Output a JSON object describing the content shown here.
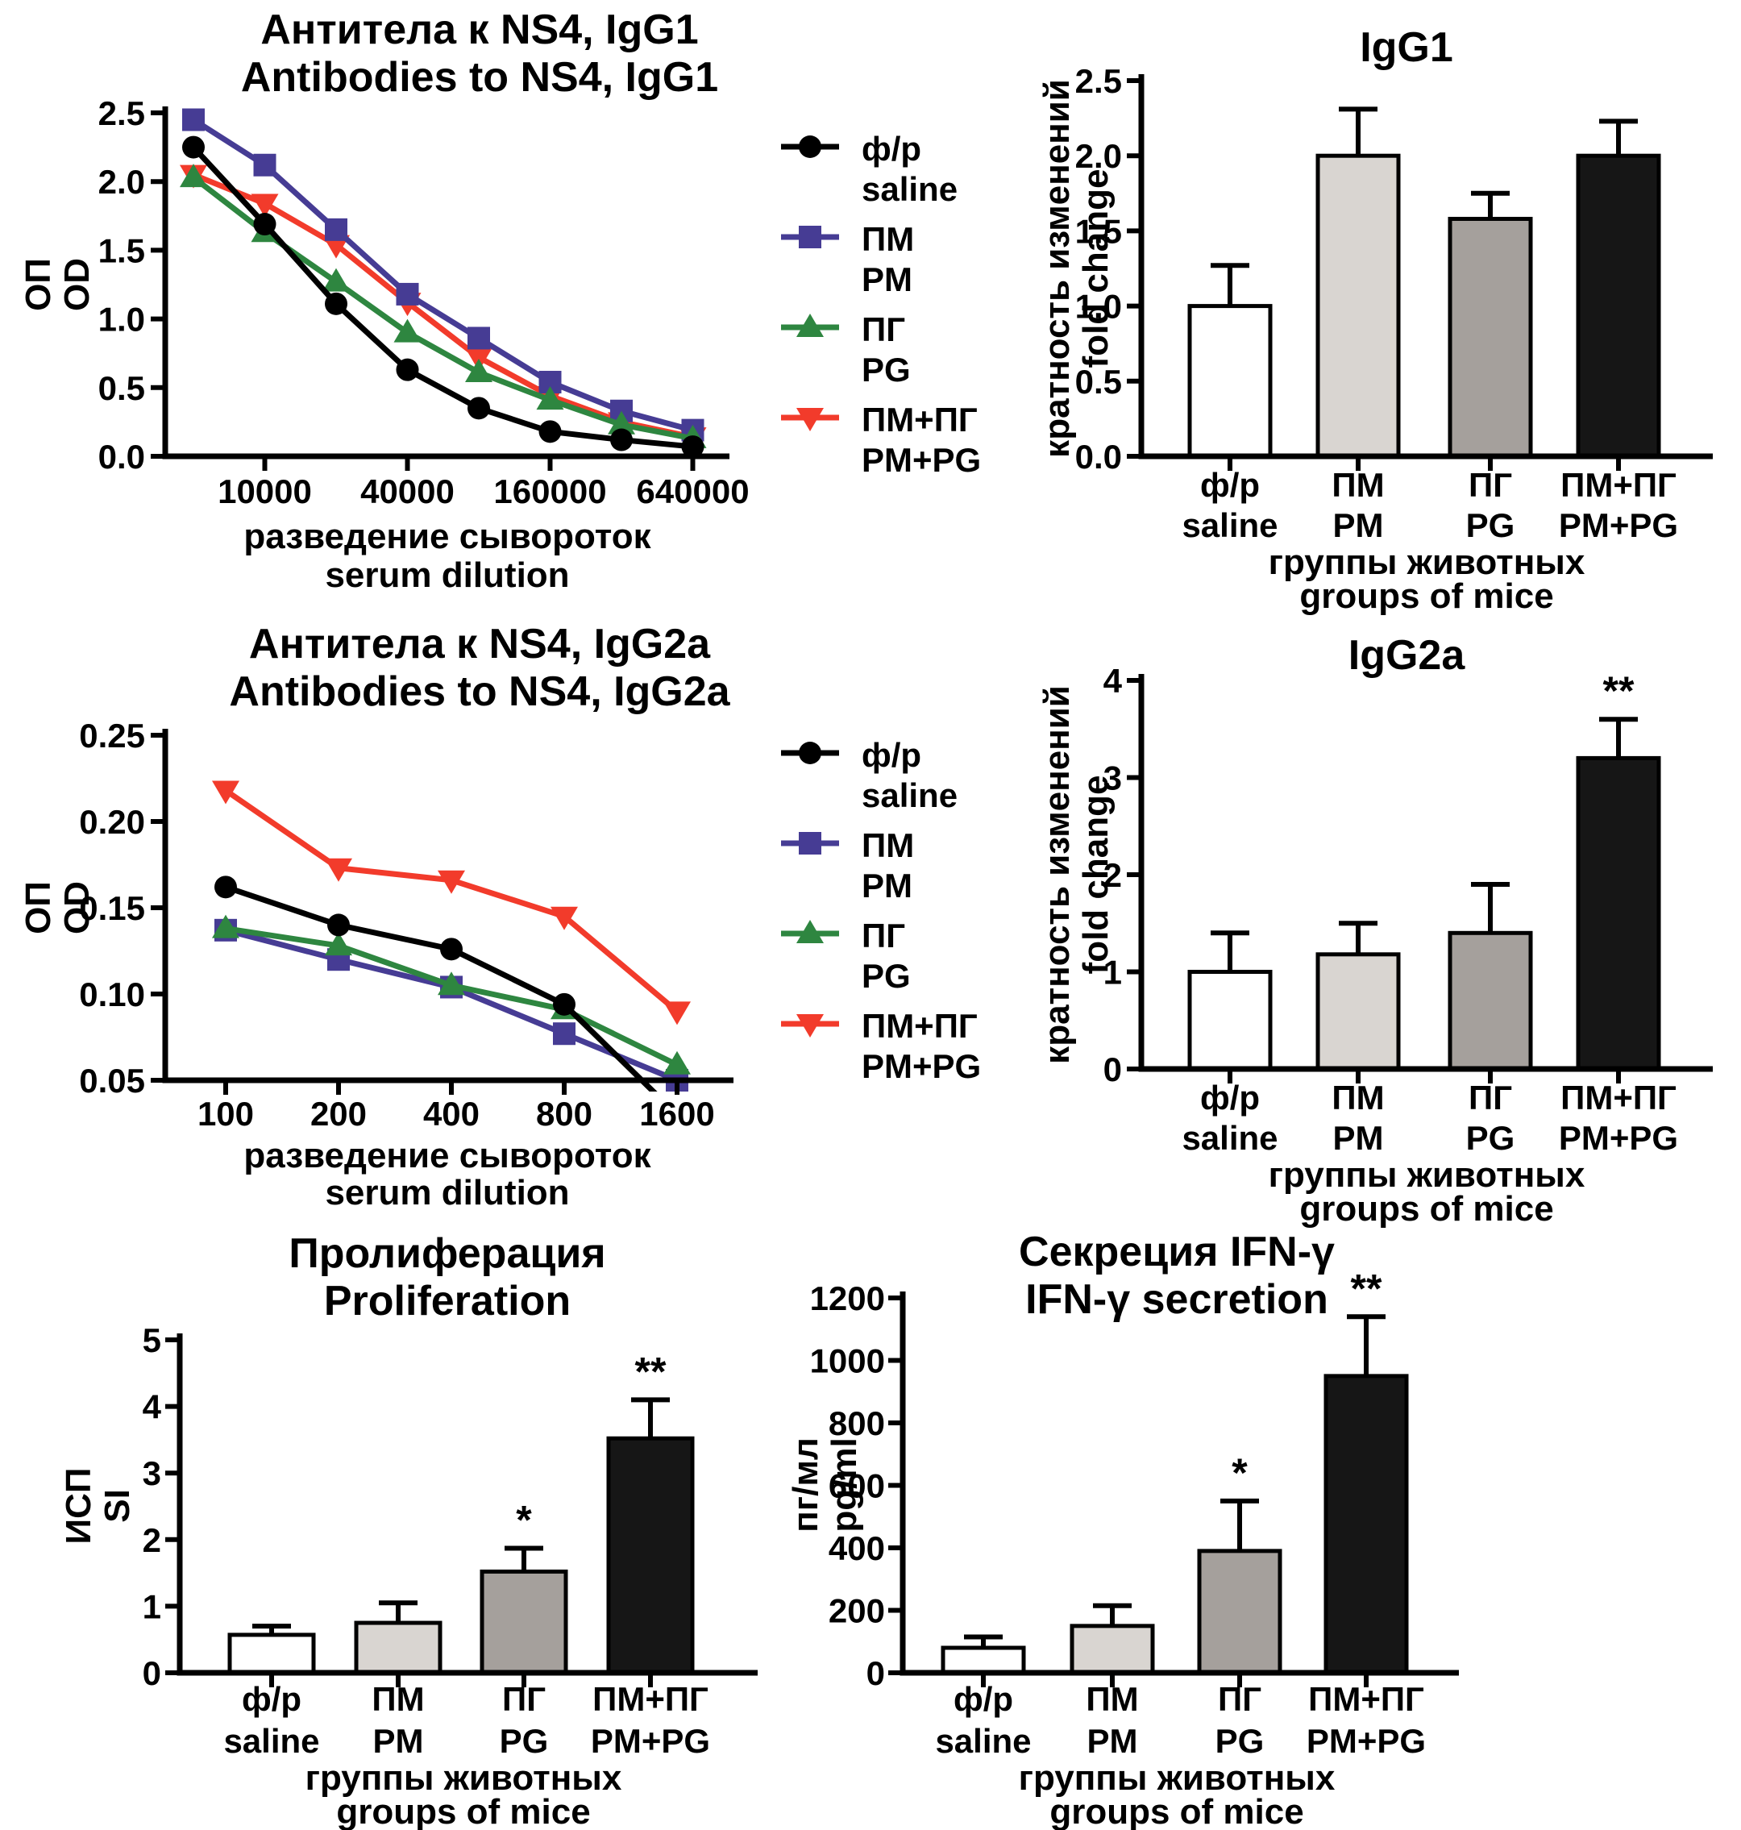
{
  "figure": {
    "background": "#ffffff",
    "series_colors": {
      "saline": "#000000",
      "PM": "#463c94",
      "PG": "#2e8640",
      "PM+PG": "#f23b2b"
    },
    "bar_fills": [
      "#ffffff",
      "#d9d5d1",
      "#a5a09c",
      "#161616"
    ]
  },
  "legend": {
    "items": [
      {
        "series": "saline",
        "marker": "circle",
        "ru": "ф/р",
        "en": "saline"
      },
      {
        "series": "PM",
        "marker": "square",
        "ru": "ПМ",
        "en": "PM"
      },
      {
        "series": "PG",
        "marker": "triangle-up",
        "ru": "ПГ",
        "en": "PG"
      },
      {
        "series": "PM+PG",
        "marker": "triangle-down",
        "ru": "ПМ+ПГ",
        "en": "PM+PG"
      }
    ]
  },
  "chart_data": [
    {
      "id": "line_igg1",
      "type": "line",
      "title_ru": "Антитела к NS4, IgG1",
      "title_en": "Antibodies to NS4, IgG1",
      "ylabel_ru": "ОП",
      "ylabel_en": "OD",
      "xlabel_ru": "разведение сывороток",
      "xlabel_en": "serum dilution",
      "x_scale": "log2",
      "x": [
        5000,
        10000,
        20000,
        40000,
        80000,
        160000,
        320000,
        640000
      ],
      "x_ticks": [
        10000,
        40000,
        160000,
        640000
      ],
      "x_tick_labels": [
        "10000",
        "40000",
        "160000",
        "640000"
      ],
      "ylim": [
        0,
        2.5
      ],
      "y_ticks": [
        0,
        0.5,
        1,
        1.5,
        2,
        2.5
      ],
      "y_tick_labels": [
        "0.0",
        "0.5",
        "1.0",
        "1.5",
        "2.0",
        "2.5"
      ],
      "grid": false,
      "series": [
        {
          "name": "PM+PG",
          "marker": "triangle-down",
          "values": [
            2.05,
            1.84,
            1.54,
            1.12,
            0.72,
            0.44,
            0.25,
            0.14
          ]
        },
        {
          "name": "PM",
          "marker": "square",
          "values": [
            2.45,
            2.12,
            1.65,
            1.18,
            0.86,
            0.54,
            0.33,
            0.19
          ]
        },
        {
          "name": "PG",
          "marker": "triangle-up",
          "values": [
            2.03,
            1.63,
            1.27,
            0.9,
            0.61,
            0.41,
            0.23,
            0.13
          ]
        },
        {
          "name": "saline",
          "marker": "circle",
          "values": [
            2.25,
            1.69,
            1.11,
            0.63,
            0.35,
            0.18,
            0.12,
            0.07
          ]
        }
      ]
    },
    {
      "id": "bar_igg1",
      "type": "bar",
      "title": "IgG1",
      "ylabel_ru": "кратность изменений",
      "ylabel_en": "fold change",
      "xlabel_ru": "группы животных",
      "xlabel_en": "groups of mice",
      "categories_ru": [
        "ф/р",
        "ПМ",
        "ПГ",
        "ПМ+ПГ"
      ],
      "categories_en": [
        "saline",
        "PM",
        "PG",
        "PM+PG"
      ],
      "values": [
        1.0,
        2.0,
        1.58,
        2.0
      ],
      "errors": [
        0.27,
        0.31,
        0.17,
        0.23
      ],
      "annotations": [
        "",
        "",
        "",
        ""
      ],
      "ylim": [
        0,
        2.5
      ],
      "y_ticks": [
        0,
        0.5,
        1,
        1.5,
        2,
        2.5
      ],
      "y_tick_labels": [
        "0.0",
        "0.5",
        "1.0",
        "1.5",
        "2.0",
        "2.5"
      ]
    },
    {
      "id": "line_igg2a",
      "type": "line",
      "title_ru": "Антитела к NS4, IgG2a",
      "title_en": "Antibodies to NS4, IgG2a",
      "ylabel_ru": "ОП",
      "ylabel_en": "OD",
      "xlabel_ru": "разведение сывороток",
      "xlabel_en": "serum dilution",
      "x_scale": "log2",
      "x": [
        100,
        200,
        400,
        800,
        1600
      ],
      "x_ticks": [
        100,
        200,
        400,
        800,
        1600
      ],
      "x_tick_labels": [
        "100",
        "200",
        "400",
        "800",
        "1600"
      ],
      "ylim": [
        0.05,
        0.25
      ],
      "y_ticks": [
        0.05,
        0.1,
        0.15,
        0.2,
        0.25
      ],
      "y_tick_labels": [
        "0.05",
        "0.10",
        "0.15",
        "0.20",
        "0.25"
      ],
      "grid": false,
      "series": [
        {
          "name": "PM+PG",
          "marker": "triangle-down",
          "values": [
            0.218,
            0.173,
            0.166,
            0.145,
            0.09
          ]
        },
        {
          "name": "PM",
          "marker": "square",
          "values": [
            0.137,
            0.12,
            0.104,
            0.077,
            0.05
          ]
        },
        {
          "name": "PG",
          "marker": "triangle-up",
          "values": [
            0.138,
            0.128,
            0.105,
            0.091,
            0.059
          ]
        },
        {
          "name": "saline",
          "marker": "circle",
          "values": [
            0.162,
            0.14,
            0.126,
            0.094,
            0.03
          ]
        }
      ]
    },
    {
      "id": "bar_igg2a",
      "type": "bar",
      "title": "IgG2a",
      "ylabel_ru": "кратность изменений",
      "ylabel_en": "fold change",
      "xlabel_ru": "группы животных",
      "xlabel_en": "groups of mice",
      "categories_ru": [
        "ф/р",
        "ПМ",
        "ПГ",
        "ПМ+ПГ"
      ],
      "categories_en": [
        "saline",
        "PM",
        "PG",
        "PM+PG"
      ],
      "values": [
        1.0,
        1.18,
        1.4,
        3.2
      ],
      "errors": [
        0.4,
        0.32,
        0.5,
        0.4
      ],
      "annotations": [
        "",
        "",
        "",
        "**"
      ],
      "ylim": [
        0,
        4
      ],
      "y_ticks": [
        0,
        1,
        2,
        3,
        4
      ],
      "y_tick_labels": [
        "0",
        "1",
        "2",
        "3",
        "4"
      ]
    },
    {
      "id": "bar_prolif",
      "type": "bar",
      "title_ru": "Пролиферация",
      "title_en": "Proliferation",
      "ylabel_ru": "ИСП",
      "ylabel_en": "SI",
      "xlabel_ru": "группы животных",
      "xlabel_en": "groups of mice",
      "categories_ru": [
        "ф/р",
        "ПМ",
        "ПГ",
        "ПМ+ПГ"
      ],
      "categories_en": [
        "saline",
        "PM",
        "PG",
        "PM+PG"
      ],
      "values": [
        0.57,
        0.75,
        1.52,
        3.52
      ],
      "errors": [
        0.13,
        0.3,
        0.35,
        0.58
      ],
      "annotations": [
        "",
        "",
        "*",
        "**"
      ],
      "ylim": [
        0,
        5
      ],
      "y_ticks": [
        0,
        1,
        2,
        3,
        4,
        5
      ],
      "y_tick_labels": [
        "0",
        "1",
        "2",
        "3",
        "4",
        "5"
      ]
    },
    {
      "id": "bar_ifn",
      "type": "bar",
      "title_ru": "Секреция IFN-γ",
      "title_en": "IFN-γ secretion",
      "ylabel_ru": "пг/мл",
      "ylabel_en": "pg/ml",
      "xlabel_ru": "группы животных",
      "xlabel_en": "groups of mice",
      "categories_ru": [
        "ф/р",
        "ПМ",
        "ПГ",
        "ПМ+ПГ"
      ],
      "categories_en": [
        "saline",
        "PM",
        "PG",
        "PM+PG"
      ],
      "values": [
        80,
        150,
        390,
        950
      ],
      "errors": [
        35,
        65,
        160,
        190
      ],
      "annotations": [
        "",
        "",
        "*",
        "**"
      ],
      "ylim": [
        0,
        1200
      ],
      "y_ticks": [
        0,
        200,
        400,
        600,
        800,
        1000,
        1200
      ],
      "y_tick_labels": [
        "0",
        "200",
        "400",
        "600",
        "800",
        "1000",
        "1200"
      ]
    }
  ]
}
